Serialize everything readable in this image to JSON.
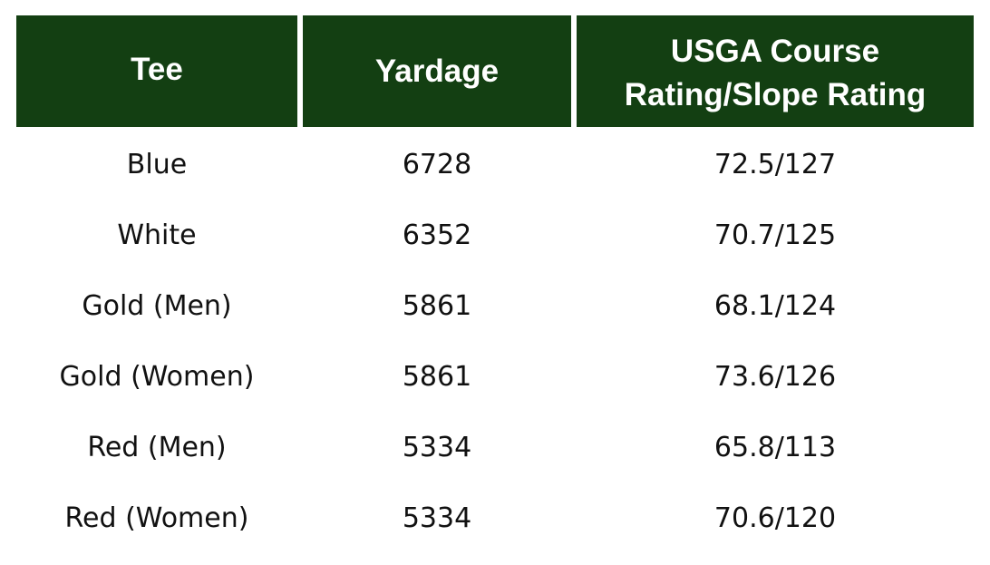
{
  "table": {
    "headers": {
      "tee": "Tee",
      "yardage": "Yardage",
      "rating": "USGA Course Rating/Slope Rating"
    },
    "rows": [
      {
        "tee": "Blue",
        "yardage": "6728",
        "rating": "72.5/127"
      },
      {
        "tee": "White",
        "yardage": "6352",
        "rating": "70.7/125"
      },
      {
        "tee": "Gold (Men)",
        "yardage": "5861",
        "rating": "68.1/124"
      },
      {
        "tee": "Gold (Women)",
        "yardage": "5861",
        "rating": "73.6/126"
      },
      {
        "tee": "Red (Men)",
        "yardage": "5334",
        "rating": "65.8/113"
      },
      {
        "tee": "Red (Women)",
        "yardage": "5334",
        "rating": "70.6/120"
      }
    ],
    "colors": {
      "header_bg": "#133f12",
      "header_text": "#ffffff",
      "body_text": "#111111"
    }
  }
}
